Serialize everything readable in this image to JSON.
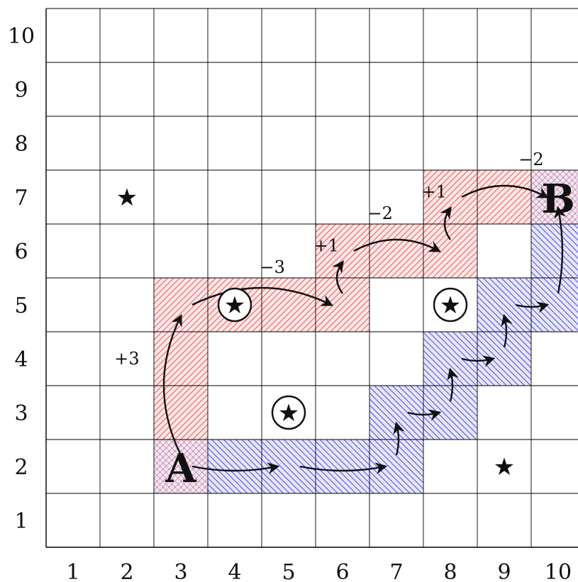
{
  "grid": {
    "columns": [
      1,
      2,
      3,
      4,
      5,
      6,
      7,
      8,
      9,
      10
    ],
    "rows": [
      1,
      2,
      3,
      4,
      5,
      6,
      7,
      8,
      9,
      10
    ],
    "x_tick_labels": [
      "1",
      "2",
      "3",
      "4",
      "5",
      "6",
      "7",
      "8",
      "9",
      "10"
    ],
    "y_tick_labels": [
      "1",
      "2",
      "3",
      "4",
      "5",
      "6",
      "7",
      "8",
      "9",
      "10"
    ]
  },
  "colors": {
    "red_hatch": "#e85a5a",
    "red_fill": "#fde6e6",
    "blue_hatch": "#4a4ad8",
    "blue_fill": "#e6e6fd",
    "grid_line": "#000000"
  },
  "endpoints": [
    {
      "label": "A",
      "col": 3,
      "row": 2
    },
    {
      "label": "B",
      "col": 10,
      "row": 7
    }
  ],
  "red_path_cells": [
    [
      3,
      2
    ],
    [
      3,
      3
    ],
    [
      3,
      4
    ],
    [
      3,
      5
    ],
    [
      4,
      5
    ],
    [
      5,
      5
    ],
    [
      6,
      5
    ],
    [
      6,
      6
    ],
    [
      7,
      6
    ],
    [
      8,
      6
    ],
    [
      8,
      7
    ],
    [
      9,
      7
    ],
    [
      10,
      7
    ]
  ],
  "blue_path_cells": [
    [
      3,
      2
    ],
    [
      4,
      2
    ],
    [
      5,
      2
    ],
    [
      6,
      2
    ],
    [
      7,
      2
    ],
    [
      7,
      3
    ],
    [
      8,
      3
    ],
    [
      8,
      4
    ],
    [
      9,
      4
    ],
    [
      9,
      5
    ],
    [
      10,
      5
    ],
    [
      10,
      6
    ],
    [
      10,
      7
    ]
  ],
  "red_moves": [
    {
      "from": [
        3,
        2
      ],
      "to": [
        3,
        5
      ],
      "label": "+3",
      "label_col": 2,
      "label_row": 4
    },
    {
      "from": [
        3,
        5
      ],
      "to": [
        6,
        5
      ],
      "label": "−3",
      "label_col": 4.7,
      "label_row": 5.7
    },
    {
      "from": [
        6,
        5
      ],
      "to": [
        6,
        6
      ],
      "label": "+1",
      "label_col": 5.7,
      "label_row": 6.1
    },
    {
      "from": [
        6,
        6
      ],
      "to": [
        8,
        6
      ],
      "label": "−2",
      "label_col": 6.7,
      "label_row": 6.7
    },
    {
      "from": [
        8,
        6
      ],
      "to": [
        8,
        7
      ],
      "label": "+1",
      "label_col": 7.7,
      "label_row": 7.1
    },
    {
      "from": [
        8,
        7
      ],
      "to": [
        10,
        7
      ],
      "label": "−2",
      "label_col": 9.5,
      "label_row": 7.7
    }
  ],
  "blue_moves": [
    {
      "from": [
        3,
        2
      ],
      "to": [
        5,
        2
      ]
    },
    {
      "from": [
        5,
        2
      ],
      "to": [
        7,
        2
      ]
    },
    {
      "from": [
        7,
        2
      ],
      "to": [
        7,
        3
      ]
    },
    {
      "from": [
        7,
        3
      ],
      "to": [
        8,
        3
      ]
    },
    {
      "from": [
        8,
        3
      ],
      "to": [
        8,
        4
      ]
    },
    {
      "from": [
        8,
        4
      ],
      "to": [
        9,
        4
      ]
    },
    {
      "from": [
        9,
        4
      ],
      "to": [
        9,
        5
      ]
    },
    {
      "from": [
        9,
        5
      ],
      "to": [
        10,
        5
      ]
    },
    {
      "from": [
        10,
        5
      ],
      "to": [
        10,
        7
      ]
    }
  ],
  "stars": [
    {
      "col": 2,
      "row": 7,
      "circled": false
    },
    {
      "col": 9,
      "row": 2,
      "circled": false
    },
    {
      "col": 4,
      "row": 5,
      "circled": true
    },
    {
      "col": 5,
      "row": 3,
      "circled": true
    },
    {
      "col": 8,
      "row": 5,
      "circled": true
    }
  ],
  "star_symbol": "★"
}
